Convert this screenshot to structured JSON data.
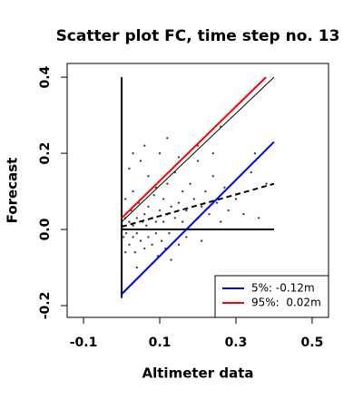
{
  "chart_data": {
    "type": "scatter",
    "title": "Scatter plot FC, time step no. 13",
    "xlabel": "Altimeter data",
    "ylabel": "Forecast",
    "xlim": [
      -0.143,
      0.543
    ],
    "ylim": [
      -0.231,
      0.436
    ],
    "xticks": [
      -0.1,
      0.1,
      0.3,
      0.5
    ],
    "yticks": [
      -0.2,
      {
        "value": 0,
        "label": "0.0"
      },
      0.2,
      0.4
    ],
    "color": "#444444",
    "legend": "lower right",
    "x": [
      0.002,
      0.005,
      0.01,
      0.012,
      0.015,
      0.02,
      0.02,
      0.025,
      0.03,
      0.03,
      0.035,
      0.04,
      0.04,
      0.045,
      0.05,
      0.05,
      0.055,
      0.06,
      0.06,
      0.065,
      0.07,
      0.07,
      0.075,
      0.08,
      0.08,
      0.085,
      0.09,
      0.09,
      0.095,
      0.1,
      0.1,
      0.105,
      0.11,
      0.11,
      0.115,
      0.12,
      0.12,
      0.125,
      0.13,
      0.13,
      0.14,
      0.14,
      0.145,
      0.15,
      0.15,
      0.16,
      0.16,
      0.17,
      0.17,
      0.18,
      0.18,
      0.19,
      0.2,
      0.2,
      0.21,
      0.21,
      0.22,
      0.23,
      0.24,
      0.25,
      0.26,
      0.27,
      0.28,
      0.3,
      0.32,
      0.34,
      0.35,
      0.36,
      0.03,
      0.02,
      0.05,
      0.07,
      0.08,
      0.04,
      0.01,
      0.06,
      0.1,
      0.12,
      0.26,
      0.15,
      0.2,
      0.38,
      0.24,
      0.01,
      0.03,
      0.09
    ],
    "y": [
      0.01,
      -0.02,
      0.03,
      -0.01,
      0.0,
      0.02,
      -0.04,
      0.05,
      -0.02,
      0.01,
      -0.06,
      0.03,
      -0.01,
      0.07,
      0.0,
      -0.03,
      0.02,
      -0.05,
      0.04,
      0.01,
      -0.02,
      0.06,
      0.0,
      -0.04,
      0.03,
      0.09,
      -0.01,
      0.02,
      -0.07,
      0.05,
      0.0,
      -0.03,
      0.08,
      0.02,
      -0.05,
      0.04,
      0.12,
      -0.01,
      0.06,
      -0.08,
      0.03,
      0.15,
      0.0,
      0.07,
      -0.04,
      0.1,
      0.02,
      -0.02,
      0.05,
      0.12,
      0.0,
      0.08,
      0.03,
      0.18,
      0.06,
      -0.03,
      0.1,
      0.04,
      0.14,
      0.07,
      0.02,
      0.11,
      0.05,
      0.08,
      0.04,
      0.15,
      0.2,
      0.03,
      0.2,
      0.16,
      0.18,
      0.14,
      -0.09,
      -0.1,
      0.08,
      0.22,
      0.2,
      0.24,
      0.27,
      0.19,
      0.22,
      0.12,
      0.2,
      -0.06,
      0.1,
      0.11
    ],
    "lines": [
      {
        "color": "#000000",
        "x": [
          0,
          0
        ],
        "y": [
          -0.18,
          0.4
        ]
      },
      {
        "color": "#000000",
        "x": [
          0,
          0.4
        ],
        "y": [
          0,
          0
        ]
      },
      {
        "color": "#000000",
        "x": [
          0,
          0.4
        ],
        "y": [
          0.02,
          0.4
        ]
      },
      {
        "color": "#000000",
        "dashed": true,
        "x": [
          0,
          0.4
        ],
        "y": [
          0.007,
          0.12
        ]
      },
      {
        "name": "5%: -0.12m",
        "color": "#0000ff",
        "x": [
          0,
          0.4
        ],
        "y": [
          -0.17,
          0.23
        ]
      },
      {
        "name": "95%:  0.02m",
        "color": "#ff0000",
        "x": [
          0,
          0.379
        ],
        "y": [
          0.03,
          0.4
        ]
      }
    ]
  }
}
